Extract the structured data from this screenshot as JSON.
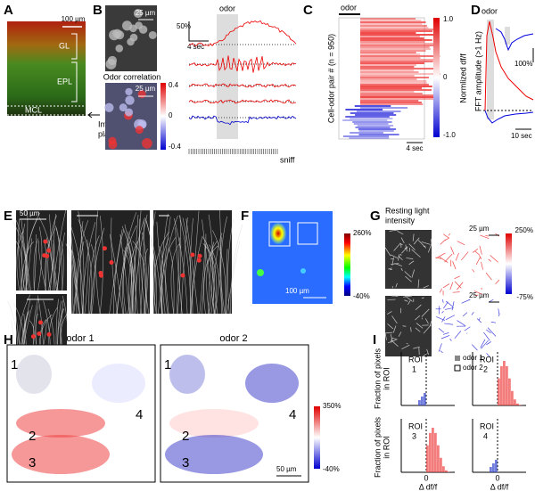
{
  "panel_labels": [
    "A",
    "B",
    "C",
    "D",
    "E",
    "F",
    "G",
    "H",
    "I"
  ],
  "a": {
    "scale": "100 µm",
    "layers": [
      "GL",
      "EPL",
      "MCL"
    ],
    "imaging_plane": [
      "Imaging",
      "plane"
    ]
  },
  "b": {
    "scale_top": "25 µm",
    "odor_correlation": "Odor correlation",
    "scale_bottom": "25 µm",
    "colorbar": [
      "0.4",
      "0",
      "-0.4"
    ],
    "amplitude_scale": "50%",
    "time_scale": "4 sec",
    "odor": "odor",
    "sniff": "sniff"
  },
  "c": {
    "odor": "odor",
    "y_label": "Cell-odor pair # (n = 950)",
    "colorbar": [
      "1.0",
      "0",
      "-1.0"
    ],
    "colorbar_label": "Normlized df/f",
    "time_scale": "4 sec"
  },
  "d": {
    "odor": "odor",
    "y_label": "FFT amplitude (>1 Hz)",
    "amplitude_scale": "100%",
    "time_scale": "10 sec"
  },
  "e": {
    "scale": "50 µm"
  },
  "f": {
    "colorbar": [
      "260%",
      "-40%"
    ],
    "scale": "100 µm"
  },
  "g": {
    "title": [
      "Resting light",
      "intensity"
    ],
    "scale_top": "25 µm",
    "scale_bottom": "25 µm",
    "colorbar": [
      "250%",
      "-75%"
    ]
  },
  "h": {
    "odors": [
      "odor 1",
      "odor 2"
    ],
    "roi_numbers": [
      "1",
      "2",
      "3",
      "4"
    ],
    "colorbar": [
      "350%",
      "-40%"
    ],
    "scale": "50 µm"
  },
  "i": {
    "rois": [
      {
        "label": "ROI",
        "number": "1"
      },
      {
        "label": "ROI",
        "number": "2"
      },
      {
        "label": "ROI",
        "number": "3"
      },
      {
        "label": "ROI",
        "number": "4"
      }
    ],
    "legend": [
      "odor 1",
      "odor 2"
    ],
    "y_label": [
      "Fraction of pixels",
      "in ROI"
    ],
    "x_label": "Δ df/f",
    "zero": "0"
  }
}
